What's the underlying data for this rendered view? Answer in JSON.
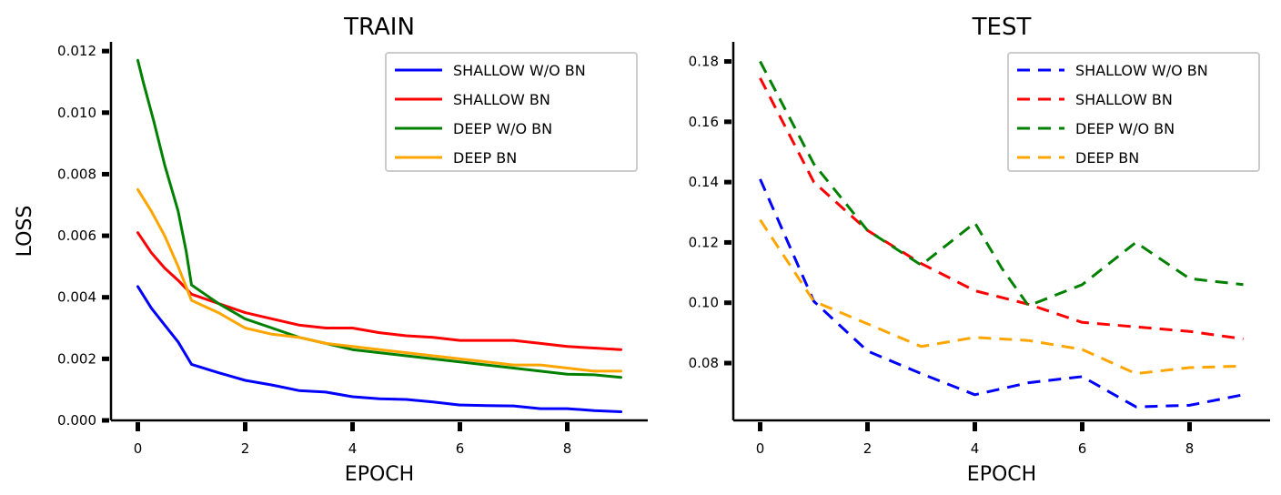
{
  "chart_data": [
    {
      "type": "line",
      "title": "TRAIN",
      "xlabel": "EPOCH",
      "ylabel": "LOSS",
      "xlim": [
        -0.5,
        9.5
      ],
      "ylim": [
        0.0,
        0.0123
      ],
      "xticks": [
        0,
        2,
        4,
        6,
        8
      ],
      "xtick_labels": [
        "0",
        "2",
        "4",
        "6",
        "8"
      ],
      "yticks": [
        0.0,
        0.002,
        0.004,
        0.006,
        0.008,
        0.01,
        0.012
      ],
      "ytick_labels": [
        "0.000",
        "0.002",
        "0.004",
        "0.006",
        "0.008",
        "0.010",
        "0.012"
      ],
      "legend_position": "upper right",
      "line_style": "solid",
      "series": [
        {
          "name": "SHALLOW W/O BN",
          "color": "#0000ff",
          "x": [
            0,
            0.25,
            0.5,
            0.75,
            1,
            1.5,
            2,
            2.5,
            3,
            3.5,
            4,
            4.5,
            5,
            5.5,
            6,
            6.5,
            7,
            7.5,
            8,
            8.5,
            9
          ],
          "y": [
            0.00435,
            0.00365,
            0.0031,
            0.00255,
            0.00182,
            0.00155,
            0.0013,
            0.00115,
            0.00097,
            0.00092,
            0.00077,
            0.0007,
            0.00068,
            0.0006,
            0.0005,
            0.00048,
            0.00047,
            0.00038,
            0.00038,
            0.00032,
            0.00028
          ]
        },
        {
          "name": "SHALLOW BN",
          "color": "#ff0000",
          "x": [
            0,
            0.25,
            0.5,
            0.75,
            1,
            1.5,
            2,
            2.5,
            3,
            3.5,
            4,
            4.5,
            5,
            5.5,
            6,
            6.5,
            7,
            7.5,
            8,
            8.5,
            9
          ],
          "y": [
            0.0061,
            0.00545,
            0.00495,
            0.00455,
            0.0041,
            0.0038,
            0.0035,
            0.0033,
            0.0031,
            0.003,
            0.003,
            0.00285,
            0.00275,
            0.0027,
            0.0026,
            0.0026,
            0.0026,
            0.0025,
            0.0024,
            0.00235,
            0.0023
          ]
        },
        {
          "name": "DEEP W/O BN",
          "color": "#008000",
          "x": [
            0,
            0.1,
            0.3,
            0.5,
            0.75,
            0.9,
            1,
            1.5,
            2,
            2.5,
            3,
            3.5,
            4,
            4.5,
            5,
            5.5,
            6,
            6.5,
            7,
            7.5,
            8,
            8.5,
            9
          ],
          "y": [
            0.0117,
            0.011,
            0.0097,
            0.0083,
            0.0068,
            0.0055,
            0.0044,
            0.0038,
            0.0033,
            0.003,
            0.0027,
            0.0025,
            0.0023,
            0.0022,
            0.0021,
            0.002,
            0.0019,
            0.0018,
            0.0017,
            0.0016,
            0.0015,
            0.00148,
            0.0014
          ]
        },
        {
          "name": "DEEP BN",
          "color": "#ffa500",
          "x": [
            0,
            0.25,
            0.5,
            0.75,
            1,
            1.5,
            2,
            2.5,
            3,
            3.5,
            4,
            4.5,
            5,
            5.5,
            6,
            6.5,
            7,
            7.5,
            8,
            8.5,
            9
          ],
          "y": [
            0.0075,
            0.0068,
            0.006,
            0.005,
            0.0039,
            0.0035,
            0.003,
            0.0028,
            0.0027,
            0.0025,
            0.0024,
            0.0023,
            0.0022,
            0.0021,
            0.002,
            0.0019,
            0.0018,
            0.0018,
            0.0017,
            0.0016,
            0.0016
          ]
        }
      ]
    },
    {
      "type": "line",
      "title": "TEST",
      "xlabel": "EPOCH",
      "ylabel": "",
      "xlim": [
        -0.5,
        9.5
      ],
      "ylim": [
        0.061,
        0.1865
      ],
      "xticks": [
        0,
        2,
        4,
        6,
        8
      ],
      "xtick_labels": [
        "0",
        "2",
        "4",
        "6",
        "8"
      ],
      "yticks": [
        0.08,
        0.1,
        0.12,
        0.14,
        0.16,
        0.18
      ],
      "ytick_labels": [
        "0.08",
        "0.10",
        "0.12",
        "0.14",
        "0.16",
        "0.18"
      ],
      "legend_position": "upper right",
      "line_style": "dashed",
      "series": [
        {
          "name": "SHALLOW W/O BN",
          "color": "#0000ff",
          "x": [
            0,
            1,
            2,
            3,
            4,
            5,
            6,
            7,
            8,
            9
          ],
          "y": [
            0.141,
            0.1005,
            0.084,
            0.0765,
            0.0695,
            0.0735,
            0.0755,
            0.0655,
            0.066,
            0.0695
          ]
        },
        {
          "name": "SHALLOW BN",
          "color": "#ff0000",
          "x": [
            0,
            1,
            2,
            3,
            4,
            5,
            6,
            7,
            8,
            9
          ],
          "y": [
            0.1745,
            0.14,
            0.124,
            0.113,
            0.104,
            0.0995,
            0.0935,
            0.092,
            0.0905,
            0.088
          ]
        },
        {
          "name": "DEEP W/O BN",
          "color": "#008000",
          "x": [
            0,
            1,
            2,
            3,
            4,
            4.5,
            5,
            6,
            7,
            8,
            9
          ],
          "y": [
            0.18,
            0.146,
            0.124,
            0.1125,
            0.1265,
            0.1115,
            0.099,
            0.106,
            0.12,
            0.108,
            0.106
          ]
        },
        {
          "name": "DEEP BN",
          "color": "#ffa500",
          "x": [
            0,
            1,
            2,
            3,
            4,
            5,
            6,
            7,
            8,
            9
          ],
          "y": [
            0.1275,
            0.1005,
            0.093,
            0.0855,
            0.0885,
            0.0875,
            0.0845,
            0.0765,
            0.0785,
            0.079
          ]
        }
      ]
    }
  ]
}
